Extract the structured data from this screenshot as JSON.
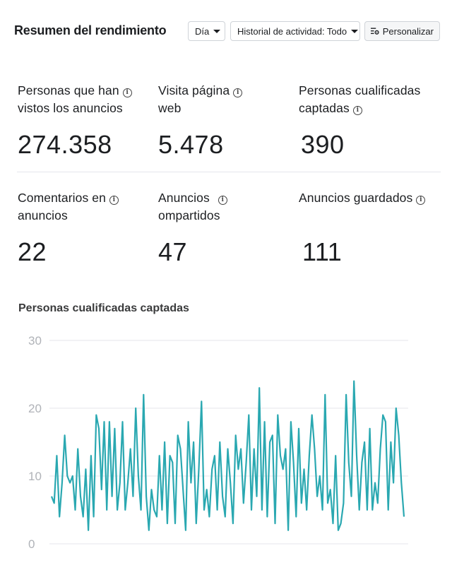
{
  "header": {
    "title": "Resumen del rendimiento",
    "day_filter": "Día",
    "history_filter": "Historial de actividad: Todo",
    "customize": "Personalizar"
  },
  "metrics": [
    {
      "label_line1": "Personas que han",
      "label_line2": "vistos los anuncios",
      "value": "274.358"
    },
    {
      "label_line1": "Visita página",
      "label_line2": "web",
      "value": "5.478"
    },
    {
      "label_line1": "Personas cualificadas",
      "label_line2": "captadas",
      "value": "390"
    },
    {
      "label_line1": "Comentarios en",
      "label_line2": "anuncios",
      "value": "22"
    },
    {
      "label_line1": "Anuncios",
      "label_line2": "ompartidos",
      "value": "47"
    },
    {
      "label_line1": "Anuncios guardados",
      "label_line2": "",
      "value": "111"
    }
  ],
  "icons": {
    "info": "info-icon",
    "caret": "caret-down-icon",
    "customize": "customize-settings-icon"
  },
  "colors": {
    "line": "#2aa8b1",
    "grid": "#e4e6eb",
    "tick": "#b0b3b8"
  },
  "chart_data": {
    "type": "line",
    "title": "Personas cualificadas captadas",
    "ylim": [
      0,
      30
    ],
    "yticks": [
      0,
      10,
      20,
      30
    ],
    "grid": true,
    "series": [
      {
        "values": [
          7,
          6,
          13,
          4,
          9,
          16,
          10,
          9,
          10,
          5,
          14,
          7,
          4,
          11,
          2,
          13,
          4,
          19,
          17,
          8,
          18,
          5,
          18,
          7,
          17,
          5,
          9,
          18,
          5,
          9,
          14,
          7,
          20,
          10,
          5,
          22,
          7,
          2,
          8,
          5,
          4,
          13,
          5,
          15,
          3,
          13,
          12,
          3,
          16,
          14,
          8,
          2,
          18,
          9,
          15,
          3,
          11,
          21,
          5,
          8,
          4,
          11,
          13,
          5,
          15,
          7,
          4,
          14,
          9,
          3,
          16,
          11,
          14,
          6,
          12,
          19,
          5,
          14,
          7,
          23,
          5,
          18,
          4,
          15,
          16,
          3,
          19,
          13,
          11,
          14,
          2,
          18,
          12,
          4,
          17,
          6,
          11,
          5,
          13,
          19,
          14,
          7,
          10,
          5,
          22,
          6,
          8,
          3,
          13,
          2,
          3,
          6,
          22,
          12,
          7,
          24,
          13,
          5,
          12,
          15,
          5,
          17,
          5,
          9,
          6,
          14,
          19,
          18,
          5,
          15,
          9,
          20,
          16,
          9,
          4
        ]
      }
    ]
  }
}
